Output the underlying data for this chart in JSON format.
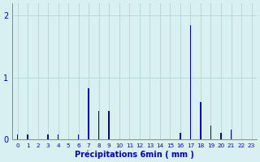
{
  "hours": [
    0,
    1,
    2,
    3,
    4,
    5,
    6,
    7,
    8,
    9,
    10,
    11,
    12,
    13,
    14,
    15,
    16,
    17,
    18,
    19,
    20,
    21,
    22,
    23
  ],
  "values": [
    0.08,
    0.08,
    0.0,
    0.08,
    0.08,
    0.0,
    0.08,
    0.82,
    0.46,
    0.46,
    0.0,
    0.0,
    0.0,
    0.0,
    0.0,
    0.0,
    0.1,
    1.85,
    0.6,
    0.22,
    0.1,
    0.15,
    0.0,
    0.0
  ],
  "xlabel": "Précipitations 6min ( mm )",
  "bar_color": "#0000cc",
  "background_color": "#d8f0f0",
  "grid_color": "#b8d8d8",
  "text_color": "#0000cc",
  "axis_color": "#888888",
  "ylim": [
    0,
    2.2
  ],
  "yticks": [
    0,
    1,
    2
  ],
  "xlim": [
    -0.5,
    23.5
  ],
  "bar_width": 0.12
}
